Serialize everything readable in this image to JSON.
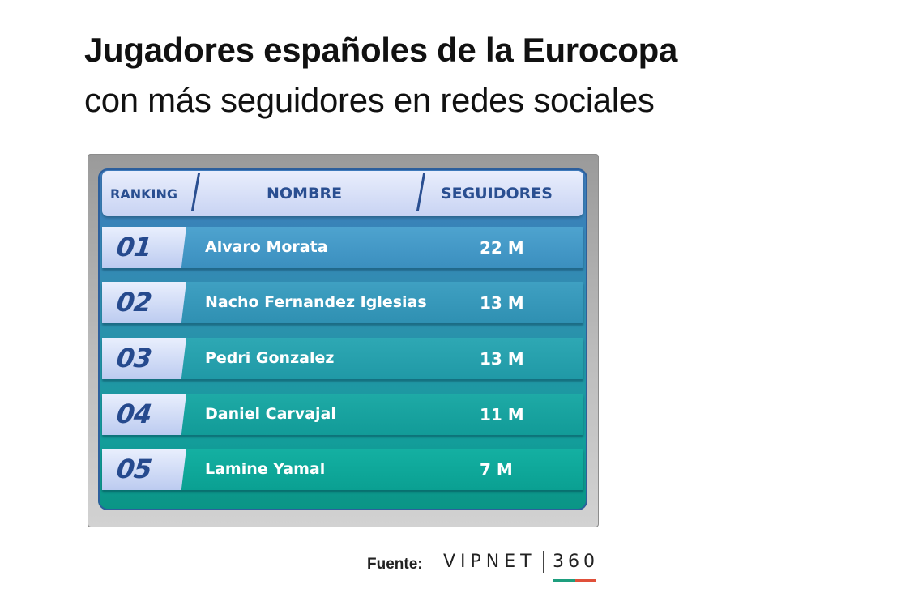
{
  "title": "Jugadores españoles de la Eurocopa",
  "subtitle": "con más seguidores en redes sociales",
  "colors": {
    "header_text": "#2a4f91",
    "row_top": "#4a97c6",
    "row_bottom": "#13aa9c",
    "brand_green": "#1e9e7e",
    "brand_red": "#e0503a"
  },
  "table": {
    "headers": {
      "ranking": "RANKING",
      "name": "NOMBRE",
      "followers": "SEGUIDORES"
    }
  },
  "chart_data": {
    "type": "table",
    "title": "Jugadores españoles de la Eurocopa",
    "subtitle": "con más seguidores en redes sociales",
    "columns": [
      "RANKING",
      "NOMBRE",
      "SEGUIDORES"
    ],
    "rows": [
      {
        "rank": "01",
        "name": "Alvaro Morata",
        "followers": "22 M",
        "value": 22
      },
      {
        "rank": "02",
        "name": "Nacho Fernandez Iglesias",
        "followers": "13 M",
        "value": 13
      },
      {
        "rank": "03",
        "name": "Pedri Gonzalez",
        "followers": "13 M",
        "value": 13
      },
      {
        "rank": "04",
        "name": "Daniel Carvajal",
        "followers": "11 M",
        "value": 11
      },
      {
        "rank": "05",
        "name": "Lamine Yamal",
        "followers": "7 M",
        "value": 7
      }
    ]
  },
  "footer": {
    "source_label": "Fuente:",
    "brand_name": "VIPNET",
    "brand_number": "360"
  }
}
